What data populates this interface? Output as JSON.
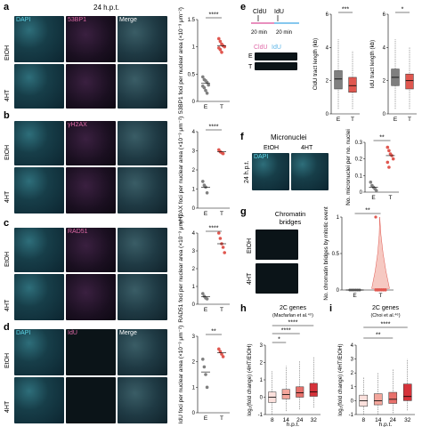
{
  "panels": {
    "a": {
      "letter": "a",
      "time": "24 h.p.t.",
      "channels": [
        "DAPI",
        "53BP1",
        "Merge"
      ],
      "rows": [
        "EtOH",
        "4HT"
      ],
      "ylabel": "53BP1 foci per nuclear area (×10⁻³ μm⁻²)",
      "sig": "****"
    },
    "b": {
      "letter": "b",
      "channels": [
        "",
        "γH2AX",
        ""
      ],
      "rows": [
        "EtOH",
        "4HT"
      ],
      "ylabel": "γH2AX foci per nuclear area (×10⁻³ μm⁻²)",
      "sig": "****"
    },
    "c": {
      "letter": "c",
      "channels": [
        "",
        "RAD51",
        ""
      ],
      "rows": [
        "EtOH",
        "4HT"
      ],
      "ylabel": "RAD51 foci per nuclear area (×10⁻³ μm⁻²)",
      "sig": "****"
    },
    "d": {
      "letter": "d",
      "channels": [
        "DAPI",
        "IdU",
        "Merge"
      ],
      "rows": [
        "EtOH",
        "4HT"
      ],
      "ylabel": "IdU foci per nuclear area (×10⁻³ μm⁻²)",
      "sig": "**"
    },
    "e": {
      "letter": "e",
      "pulse1": "CldU",
      "pulse2": "IdU",
      "t1": "20 min",
      "t2": "20 min",
      "fiber_legend_a": "CldU",
      "fiber_legend_b": "IdU",
      "fiber_rows": [
        "E",
        "T"
      ],
      "ylabel1": "CldU tract length (kb)",
      "ylabel2": "IdU tract length (kb)",
      "sig1": "***",
      "sig2": "*"
    },
    "f": {
      "letter": "f",
      "title": "Micronuclei",
      "cols": [
        "EtOH",
        "4HT"
      ],
      "rowlab": "24 h.p.t.",
      "tag": "DAPI",
      "ylabel": "No. micronuclei per no. nuclei",
      "sig": "**"
    },
    "g": {
      "letter": "g",
      "title": "Chromatin bridges",
      "rows": [
        "EtOH",
        "4HT"
      ],
      "ylabel": "No. chromatin bridges by mitotic event",
      "sig": "**"
    },
    "h": {
      "letter": "h",
      "title": "2C genes",
      "subtitle": "(Macfarlan et al.⁴⁵)",
      "xlabel": "h.p.t.",
      "ylabel": "log₂(fold change) (4HT/EtOH)",
      "sig": [
        "*",
        "****",
        "****"
      ]
    },
    "i": {
      "letter": "i",
      "title": "2C genes",
      "subtitle": "(Choi et al.⁴⁶)",
      "xlabel": "h.p.t.",
      "ylabel": "log₂(fold change) (4HT/EtOH)",
      "sig": [
        "**",
        "****"
      ]
    }
  },
  "chart_data": [
    {
      "type": "scatter",
      "panel": "a",
      "categories": [
        "E",
        "T"
      ],
      "ylim": [
        0,
        1.5
      ],
      "yticks": [
        0,
        0.5,
        1.0,
        1.5
      ],
      "series": [
        {
          "values": [
            0.45,
            0.4,
            0.38,
            0.35,
            0.3,
            0.28,
            0.25,
            0.2,
            0.15
          ]
        },
        {
          "values": [
            1.15,
            1.1,
            1.05,
            1.02,
            1.0,
            0.98,
            0.95,
            0.9
          ]
        }
      ],
      "means": [
        0.33,
        1.02
      ]
    },
    {
      "type": "scatter",
      "panel": "b",
      "categories": [
        "E",
        "T"
      ],
      "ylim": [
        0,
        4
      ],
      "yticks": [
        0,
        1,
        2,
        3,
        4
      ],
      "series": [
        {
          "values": [
            1.4,
            1.2,
            1.1,
            0.8
          ]
        },
        {
          "values": [
            3.05,
            2.95,
            2.9,
            2.85
          ]
        }
      ],
      "means": [
        1.1,
        2.95
      ]
    },
    {
      "type": "scatter",
      "panel": "c",
      "categories": [
        "E",
        "T"
      ],
      "ylim": [
        0,
        4
      ],
      "yticks": [
        0,
        1,
        2,
        3,
        4
      ],
      "series": [
        {
          "values": [
            0.6,
            0.45,
            0.35,
            0.3
          ]
        },
        {
          "values": [
            4.0,
            3.7,
            3.4,
            3.2,
            2.9
          ]
        }
      ],
      "means": [
        0.43,
        3.4
      ]
    },
    {
      "type": "scatter",
      "panel": "d",
      "categories": [
        "E",
        "T"
      ],
      "ylim": [
        0,
        3
      ],
      "yticks": [
        0,
        1,
        2,
        3
      ],
      "series": [
        {
          "values": [
            2.1,
            1.8,
            1.5,
            1.0
          ]
        },
        {
          "values": [
            2.5,
            2.4,
            2.3,
            2.2
          ]
        }
      ],
      "means": [
        1.6,
        2.35
      ]
    },
    {
      "type": "box",
      "panel": "e1",
      "categories": [
        "E",
        "T"
      ],
      "ylim": [
        0,
        6
      ],
      "yticks": [
        0,
        2,
        4,
        6
      ],
      "boxes": [
        {
          "q1": 1.5,
          "med": 2.1,
          "q3": 2.6,
          "lo": 0.3,
          "hi": 4.5
        },
        {
          "q1": 1.3,
          "med": 1.7,
          "q3": 2.2,
          "lo": 0.3,
          "hi": 3.8
        }
      ]
    },
    {
      "type": "box",
      "panel": "e2",
      "categories": [
        "E",
        "T"
      ],
      "ylim": [
        0,
        6
      ],
      "yticks": [
        0,
        2,
        4,
        6
      ],
      "boxes": [
        {
          "q1": 1.7,
          "med": 2.2,
          "q3": 2.7,
          "lo": 0.3,
          "hi": 4.5
        },
        {
          "q1": 1.5,
          "med": 2.0,
          "q3": 2.4,
          "lo": 0.3,
          "hi": 4.0
        }
      ]
    },
    {
      "type": "scatter",
      "panel": "f",
      "categories": [
        "E",
        "T"
      ],
      "ylim": [
        0,
        0.3
      ],
      "yticks": [
        0,
        0.1,
        0.2,
        0.3
      ],
      "series": [
        {
          "values": [
            0.06,
            0.04,
            0.03,
            0.02,
            0.01
          ]
        },
        {
          "values": [
            0.27,
            0.25,
            0.23,
            0.22,
            0.2,
            0.18,
            0.15
          ]
        }
      ],
      "means": [
        0.03,
        0.22
      ]
    },
    {
      "type": "violin",
      "panel": "g",
      "categories": [
        "E",
        "T"
      ],
      "ylim": [
        0,
        1
      ],
      "yticks": [
        0,
        0.5,
        1.0
      ],
      "series": [
        {
          "values": [
            0,
            0,
            0,
            0,
            0,
            0
          ]
        },
        {
          "values": [
            1,
            0,
            0,
            0,
            0,
            0,
            0,
            0
          ]
        }
      ]
    },
    {
      "type": "box",
      "panel": "h",
      "categories": [
        "8",
        "14",
        "24",
        "32"
      ],
      "ylim": [
        -1,
        3
      ],
      "yticks": [
        -1,
        0,
        1,
        2,
        3
      ],
      "boxes": [
        {
          "q1": -0.3,
          "med": 0.0,
          "q3": 0.3,
          "lo": -1.0,
          "hi": 1.5
        },
        {
          "q1": -0.1,
          "med": 0.15,
          "q3": 0.45,
          "lo": -0.8,
          "hi": 1.8
        },
        {
          "q1": 0.0,
          "med": 0.25,
          "q3": 0.6,
          "lo": -0.7,
          "hi": 2.1
        },
        {
          "q1": 0.05,
          "med": 0.3,
          "q3": 0.8,
          "lo": -0.6,
          "hi": 2.3
        }
      ]
    },
    {
      "type": "box",
      "panel": "i",
      "categories": [
        "8",
        "14",
        "24",
        "32"
      ],
      "ylim": [
        -1,
        4
      ],
      "yticks": [
        -1,
        0,
        1,
        2,
        3,
        4
      ],
      "boxes": [
        {
          "q1": -0.4,
          "med": 0.0,
          "q3": 0.4,
          "lo": -1.0,
          "hi": 1.7
        },
        {
          "q1": -0.3,
          "med": 0.0,
          "q3": 0.5,
          "lo": -1.0,
          "hi": 2.0
        },
        {
          "q1": -0.2,
          "med": 0.1,
          "q3": 0.6,
          "lo": -0.9,
          "hi": 2.3
        },
        {
          "q1": 0.0,
          "med": 0.3,
          "q3": 1.2,
          "lo": -0.7,
          "hi": 3.0
        }
      ]
    }
  ],
  "colors": {
    "E": "#7f7f7f",
    "T": "#e0574f",
    "box_light": "#fbe0dc",
    "box_mid": "#f3a69c",
    "box_dark": "#d6323a",
    "cyan": "#5fd6e8",
    "pink": "#e06aa8"
  }
}
